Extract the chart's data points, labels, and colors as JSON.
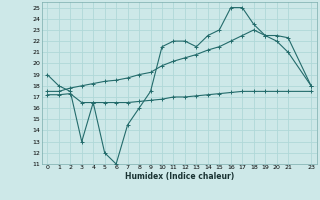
{
  "xlabel": "Humidex (Indice chaleur)",
  "xlim": [
    -0.5,
    23.5
  ],
  "ylim": [
    11,
    25.5
  ],
  "yticks": [
    11,
    12,
    13,
    14,
    15,
    16,
    17,
    18,
    19,
    20,
    21,
    22,
    23,
    24,
    25
  ],
  "xticks": [
    0,
    1,
    2,
    3,
    4,
    5,
    6,
    7,
    8,
    9,
    10,
    11,
    12,
    13,
    14,
    15,
    16,
    17,
    18,
    19,
    20,
    21,
    23
  ],
  "xtick_labels": [
    "0",
    "1",
    "2",
    "3",
    "4",
    "5",
    "6",
    "7",
    "8",
    "9",
    "10",
    "11",
    "12",
    "13",
    "14",
    "15",
    "16",
    "17",
    "18",
    "19",
    "20",
    "21",
    "23"
  ],
  "bg_color": "#cde8e8",
  "grid_color": "#b0d8d8",
  "line_color": "#236b6b",
  "series1_x": [
    0,
    1,
    2,
    3,
    4,
    5,
    6,
    7,
    8,
    9,
    10,
    11,
    12,
    13,
    14,
    15,
    16,
    17,
    18,
    19,
    20,
    21,
    23
  ],
  "series1_y": [
    19.0,
    18.0,
    17.5,
    13.0,
    16.5,
    12.0,
    11.0,
    14.5,
    16.0,
    17.5,
    21.5,
    22.0,
    22.0,
    21.5,
    22.5,
    23.0,
    25.0,
    25.0,
    23.5,
    22.5,
    22.0,
    21.0,
    18.0
  ],
  "series2_x": [
    0,
    1,
    2,
    3,
    4,
    5,
    6,
    7,
    8,
    9,
    10,
    11,
    12,
    13,
    14,
    15,
    16,
    17,
    18,
    19,
    20,
    21,
    23
  ],
  "series2_y": [
    17.5,
    17.5,
    17.8,
    18.0,
    18.2,
    18.4,
    18.5,
    18.7,
    19.0,
    19.2,
    19.8,
    20.2,
    20.5,
    20.8,
    21.2,
    21.5,
    22.0,
    22.5,
    23.0,
    22.5,
    22.5,
    22.3,
    18.0
  ],
  "series3_x": [
    0,
    1,
    2,
    3,
    4,
    5,
    6,
    7,
    8,
    9,
    10,
    11,
    12,
    13,
    14,
    15,
    16,
    17,
    18,
    19,
    20,
    21,
    23
  ],
  "series3_y": [
    17.2,
    17.2,
    17.3,
    16.5,
    16.5,
    16.5,
    16.5,
    16.5,
    16.6,
    16.7,
    16.8,
    17.0,
    17.0,
    17.1,
    17.2,
    17.3,
    17.4,
    17.5,
    17.5,
    17.5,
    17.5,
    17.5,
    17.5
  ]
}
